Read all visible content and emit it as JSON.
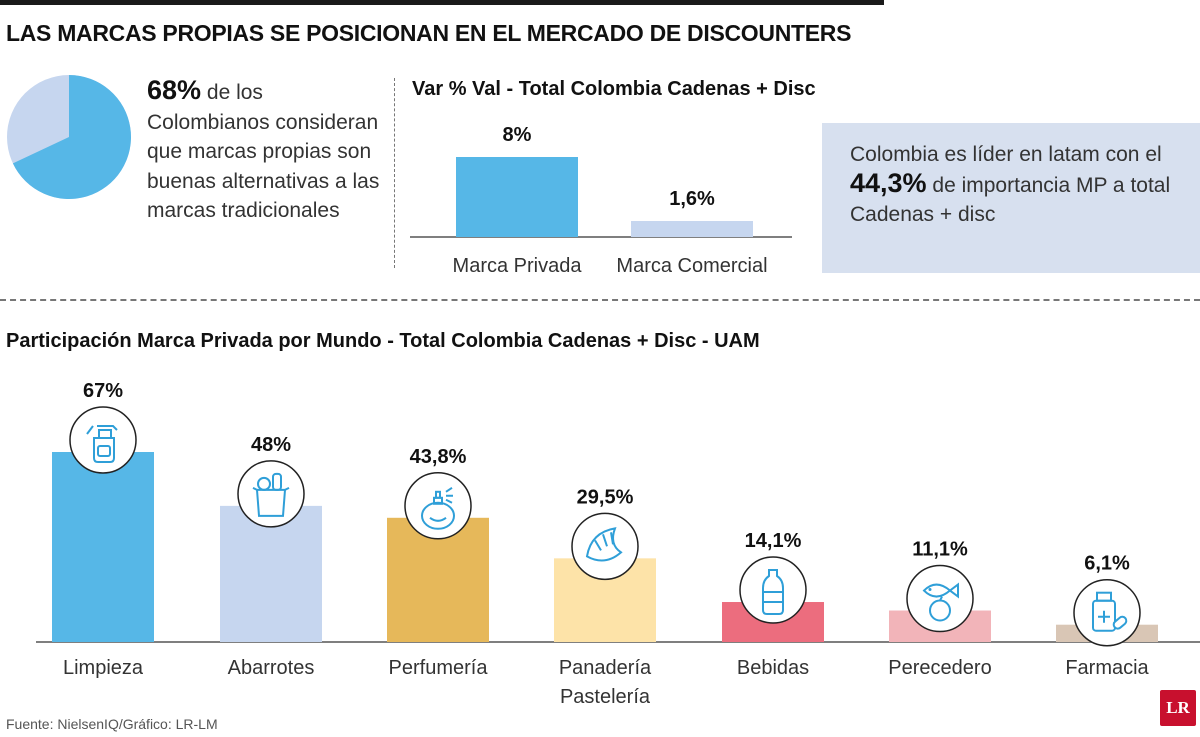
{
  "title": "LAS MARCAS PROPIAS SE POSICIONAN EN EL MERCADO DE DISCOUNTERS",
  "stat": {
    "value": "68%",
    "share": 68,
    "text": "de los Colombianos consideran que marcas propias son buenas alternativas a las marcas tradicionales"
  },
  "info": {
    "before": "Colombia es líder en latam con el",
    "value": "44,3%",
    "after": "de importancia MP a total Cadenas + disc"
  },
  "colors": {
    "blue": "#56b7e7",
    "light_blue": "#c6d6ef",
    "gold": "#e6b85a",
    "cream": "#fde3a8",
    "red": "#ec6d7e",
    "pink": "#f2b4b9",
    "tan": "#d9c6b5",
    "info_box": "#d7e0ef",
    "icon": "#2f9fd8"
  },
  "source": "Fuente: NielsenIQ/Gráfico: LR-LM",
  "logo": "LR",
  "chart_data": [
    {
      "type": "bar",
      "title": "Var % Val - Total Colombia Cadenas + Disc",
      "categories": [
        "Marca Privada",
        "Marca Comercial"
      ],
      "values": [
        8,
        1.6
      ],
      "labels": [
        "8%",
        "1,6%"
      ],
      "colors": [
        "#56b7e7",
        "#c6d6ef"
      ],
      "ylim": [
        0,
        8
      ]
    },
    {
      "type": "bar",
      "title": "Participación Marca Privada por Mundo - Total Colombia Cadenas + Disc - UAM",
      "categories": [
        "Limpieza",
        "Abarrotes",
        "Perfumería",
        "Panadería Pastelería",
        "Bebidas",
        "Perecedero",
        "Farmacia"
      ],
      "values": [
        67,
        48,
        43.8,
        29.5,
        14.1,
        11.1,
        6.1
      ],
      "labels": [
        "67%",
        "48%",
        "43,8%",
        "29,5%",
        "14,1%",
        "11,1%",
        "6,1%"
      ],
      "icons": [
        "spray-bottle-icon",
        "grocery-bag-icon",
        "perfume-bottle-icon",
        "croissant-icon",
        "water-bottle-icon",
        "fish-apple-icon",
        "medicine-icon"
      ],
      "colors": [
        "#56b7e7",
        "#c6d6ef",
        "#e6b85a",
        "#fde3a8",
        "#ec6d7e",
        "#f2b4b9",
        "#d9c6b5"
      ],
      "ylim": [
        0,
        67
      ]
    }
  ]
}
